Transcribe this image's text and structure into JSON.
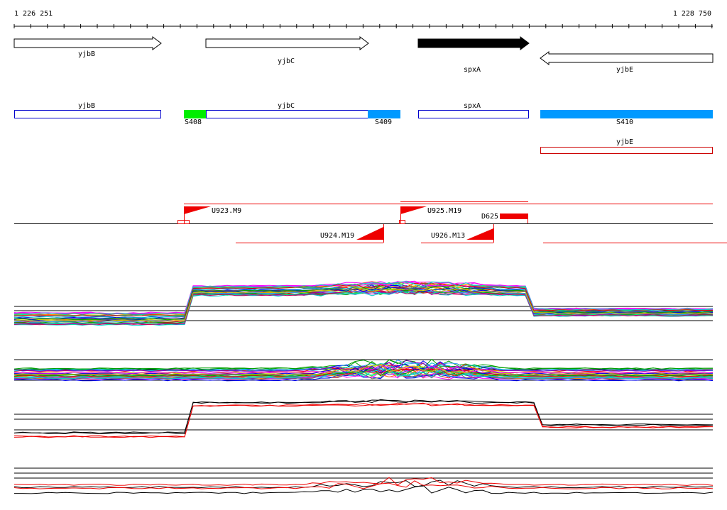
{
  "ruler": {
    "start": "1 226 251",
    "end": "1 228 750"
  },
  "genes": [
    {
      "label": "yjbB"
    },
    {
      "label": "yjbC"
    },
    {
      "label": "spxA"
    },
    {
      "label": "yjbE"
    }
  ],
  "annotations": {
    "yjbB": "yjbB",
    "yjbC": "yjbC",
    "spxA": "spxA",
    "S408": "S408",
    "S409": "S409",
    "S410": "S410",
    "yjbE": "yjbE"
  },
  "features": {
    "U923": "U923.M9",
    "U925": "U925.M19",
    "D625": "D625",
    "U924": "U924.M19",
    "U926": "U926.M13"
  }
}
